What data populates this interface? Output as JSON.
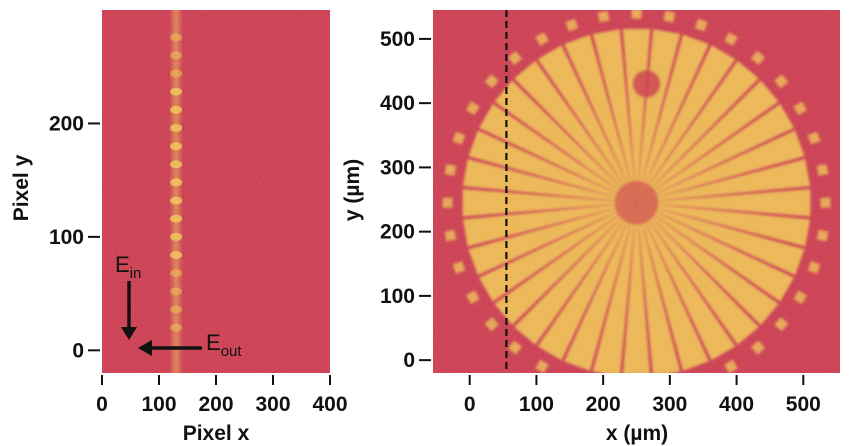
{
  "colors": {
    "background_magenta": "#c93a52",
    "signal_yellow": "#f3d25c",
    "axis": "#111111",
    "dashed_line": "#111111"
  },
  "chart_data": [
    {
      "type": "heatmap",
      "title": "",
      "xlabel": "Pixel x",
      "ylabel": "Pixel y",
      "xlim": [
        0,
        400
      ],
      "ylim": [
        -20,
        300
      ],
      "xticks": [
        0,
        100,
        200,
        300,
        400
      ],
      "yticks": [
        0,
        100,
        200
      ],
      "colormap": [
        "#c93a52",
        "#f3d25c"
      ],
      "features": {
        "vertical_stripe_x": 130,
        "stripe_modulation_spacing": 16
      },
      "annotations": [
        {
          "text": "E",
          "sub": "in",
          "arrow": "down"
        },
        {
          "text": "E",
          "sub": "out",
          "arrow": "left"
        }
      ]
    },
    {
      "type": "heatmap",
      "title": "",
      "xlabel": "x (µm)",
      "ylabel": "y (µm)",
      "xlim": [
        -55,
        555
      ],
      "ylim": [
        -20,
        545
      ],
      "xticks": [
        0,
        100,
        200,
        300,
        400,
        500
      ],
      "yticks": [
        0,
        100,
        200,
        300,
        400,
        500
      ],
      "colormap": [
        "#c93a52",
        "#f3d25c"
      ],
      "features": {
        "target": "Siemens star",
        "center": [
          250,
          245
        ],
        "outer_radius": 275,
        "spokes": 36,
        "dashed_line_x": 55
      }
    }
  ]
}
